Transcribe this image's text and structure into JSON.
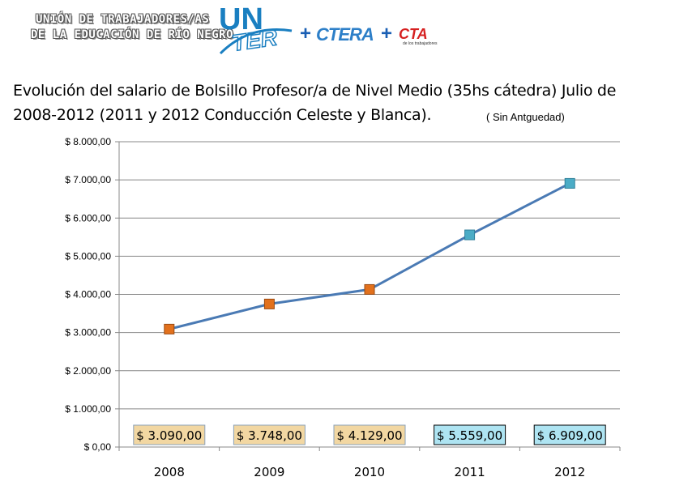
{
  "header": {
    "org_line1": "UNIÓN DE TRABAJADORES/AS",
    "org_line2": "DE LA EDUCACIÓN DE RÍO NEGRO",
    "logo_un": "UN",
    "logo_ter": "TER",
    "plus": "+",
    "ctera": "CTERA",
    "cta": "CTA",
    "cta_sub": "de los trabajadores"
  },
  "colors": {
    "line": "#4a7ab4",
    "marker_orange": "#e2711d",
    "marker_blue": "#4bacc6",
    "label_box_tan": "#f2d7a2",
    "label_box_blue": "#aee4f2",
    "gridline": "#888888"
  },
  "chart_data": {
    "type": "line",
    "title": "Evolución del salario de Bolsillo Profesor/a de Nivel Medio (35hs cátedra) Julio de 2008-2012   (2011 y 2012 Conducción Celeste y Blanca).",
    "subtitle": "( Sin Antguedad)",
    "xlabel": "",
    "ylabel": "",
    "categories": [
      "2008",
      "2009",
      "2010",
      "2011",
      "2012"
    ],
    "values": [
      3090,
      3748,
      4129,
      5559,
      6909
    ],
    "data_labels": [
      "$ 3.090,00",
      "$ 3.748,00",
      "$ 4.129,00",
      "$ 5.559,00",
      "$ 6.909,00"
    ],
    "marker_colors": [
      "orange",
      "orange",
      "orange",
      "blue",
      "blue"
    ],
    "ylim": [
      0,
      8000
    ],
    "yticks": [
      0,
      1000,
      2000,
      3000,
      4000,
      5000,
      6000,
      7000,
      8000
    ],
    "ytick_labels": [
      "$ 0,00",
      "$ 1.000,00",
      "$ 2.000,00",
      "$ 3.000,00",
      "$ 4.000,00",
      "$ 5.000,00",
      "$ 6.000,00",
      "$ 7.000,00",
      "$ 8.000,00"
    ],
    "grid": true,
    "legend": "none"
  }
}
